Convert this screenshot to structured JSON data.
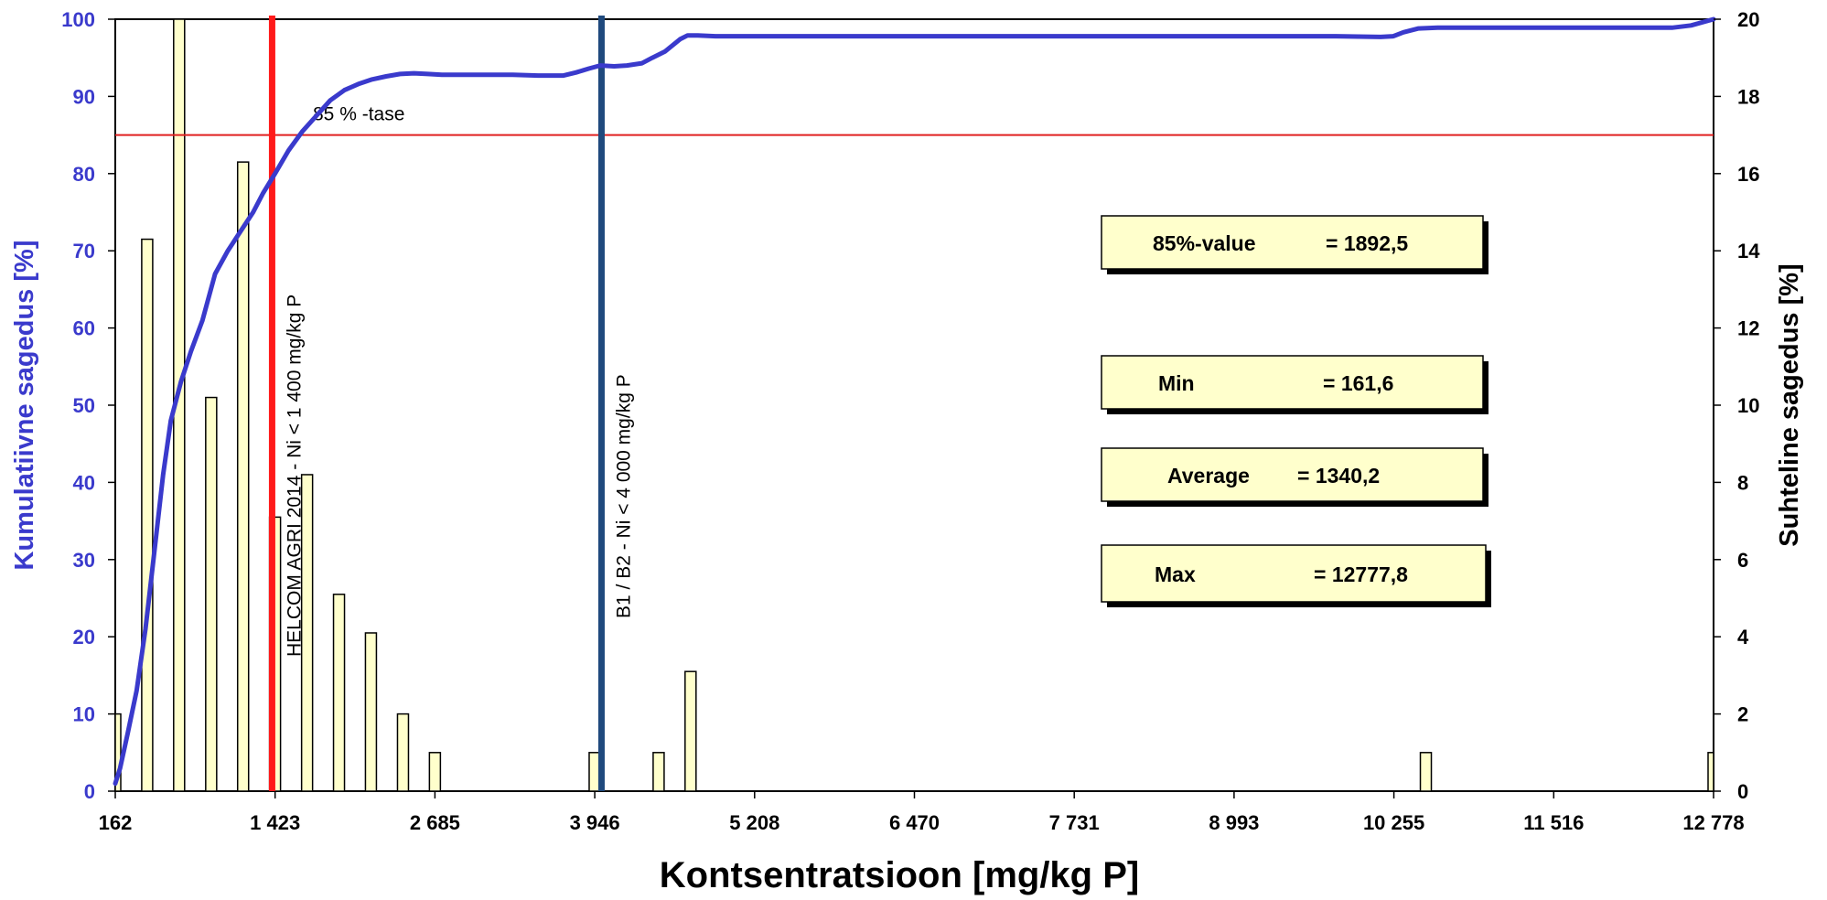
{
  "chart_data": {
    "type": "bar",
    "xlabel": "Kontsentratsioon  [mg/kg P]",
    "ylabel_left": "Kumulatiivne sagedus  [%]",
    "ylabel_right": "Suhteline sagedus  [%]",
    "x_range": [
      162,
      12778
    ],
    "x_ticks": [
      "162",
      "1 423",
      "2 685",
      "3 946",
      "5 208",
      "6 470",
      "7 731",
      "8 993",
      "10 255",
      "11 516",
      "12 778"
    ],
    "y_left_range": [
      0,
      100
    ],
    "y_left_ticks": [
      "0",
      "10",
      "20",
      "30",
      "40",
      "50",
      "60",
      "70",
      "80",
      "90",
      "100"
    ],
    "y_right_range": [
      0,
      20
    ],
    "y_right_ticks": [
      "0",
      "2",
      "4",
      "6",
      "8",
      "10",
      "12",
      "14",
      "16",
      "18",
      "20"
    ],
    "bars": {
      "name": "Suhteline sagedus",
      "color": "#ffffcc",
      "x": [
        162,
        414,
        666,
        919,
        1171,
        1423,
        1676,
        1928,
        2180,
        2433,
        2685,
        3946,
        4451,
        4703,
        10507,
        12778
      ],
      "values": [
        2.0,
        14.3,
        20.0,
        10.2,
        16.3,
        7.1,
        8.2,
        5.1,
        4.1,
        2.0,
        1.0,
        1.0,
        1.0,
        3.1,
        1.0,
        1.0
      ]
    },
    "cumulative": {
      "name": "Kumulatiivne sagedus",
      "color": "#3a3acc",
      "x": [
        162,
        200,
        260,
        330,
        400,
        470,
        540,
        600,
        680,
        760,
        850,
        950,
        1050,
        1150,
        1250,
        1330,
        1423,
        1530,
        1640,
        1750,
        1860,
        1970,
        2080,
        2190,
        2300,
        2410,
        2520,
        2630,
        2740,
        2900,
        3100,
        3300,
        3500,
        3700,
        3800,
        3900,
        3990,
        4100,
        4200,
        4320,
        4400,
        4500,
        4560,
        4620,
        4680,
        4760,
        4900,
        5200,
        6000,
        7000,
        8000,
        9000,
        9800,
        10150,
        10250,
        10330,
        10450,
        10600,
        11000,
        11600,
        12200,
        12450,
        12600,
        12778
      ],
      "values": [
        1.0,
        3.0,
        7.5,
        13.0,
        21.0,
        31.0,
        41.0,
        48.0,
        53.0,
        57.0,
        61.0,
        67.0,
        70.0,
        72.5,
        75.0,
        77.5,
        80.0,
        83.0,
        85.5,
        87.5,
        89.5,
        90.8,
        91.6,
        92.2,
        92.6,
        92.9,
        93.0,
        92.9,
        92.8,
        92.8,
        92.8,
        92.8,
        92.7,
        92.7,
        93.1,
        93.6,
        94.0,
        93.9,
        94.0,
        94.3,
        95.0,
        95.8,
        96.6,
        97.4,
        97.9,
        97.9,
        97.8,
        97.8,
        97.8,
        97.8,
        97.8,
        97.8,
        97.8,
        97.7,
        97.8,
        98.3,
        98.8,
        98.9,
        98.9,
        98.9,
        98.9,
        98.9,
        99.2,
        100.0
      ]
    },
    "threshold_85": {
      "value": 85,
      "label": "85 % -tase",
      "color": "#e02020"
    },
    "limit_lines": [
      {
        "x": 1400,
        "label": "HELCOM AGRI 2014 - Ni < 1 400 mg/kg P",
        "color": "#ff1a1a"
      },
      {
        "x": 4000,
        "label": "B1 / B2 - Ni < 4 000 mg/kg P",
        "color": "#1f497d"
      }
    ],
    "stats": [
      {
        "label": "85%-value",
        "value": "=  1892,5"
      },
      {
        "label": "Min",
        "value": "=    161,6"
      },
      {
        "label": "Average",
        "value": "=    1340,2"
      },
      {
        "label": "Max",
        "value": "=   12777,8"
      }
    ],
    "grid": false,
    "legend": "none"
  }
}
